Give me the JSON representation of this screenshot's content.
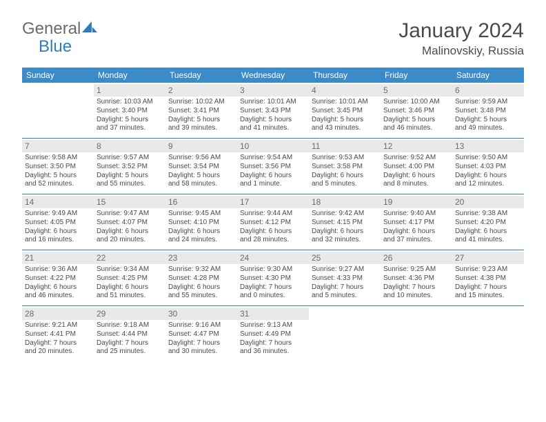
{
  "brand": {
    "general": "General",
    "blue": "Blue"
  },
  "title": "January 2024",
  "location": "Malinovskiy, Russia",
  "colors": {
    "header_bg": "#3b8bc9",
    "header_text": "#ffffff",
    "daynum_bg": "#e9e9e9",
    "border": "#2d7cc0",
    "text": "#4a4a4a",
    "logo_accent": "#2d7cc0"
  },
  "dayHeaders": [
    "Sunday",
    "Monday",
    "Tuesday",
    "Wednesday",
    "Thursday",
    "Friday",
    "Saturday"
  ],
  "weeks": [
    [
      {
        "empty": true
      },
      {
        "n": "1",
        "sr": "Sunrise: 10:03 AM",
        "ss": "Sunset: 3:40 PM",
        "d1": "Daylight: 5 hours",
        "d2": "and 37 minutes."
      },
      {
        "n": "2",
        "sr": "Sunrise: 10:02 AM",
        "ss": "Sunset: 3:41 PM",
        "d1": "Daylight: 5 hours",
        "d2": "and 39 minutes."
      },
      {
        "n": "3",
        "sr": "Sunrise: 10:01 AM",
        "ss": "Sunset: 3:43 PM",
        "d1": "Daylight: 5 hours",
        "d2": "and 41 minutes."
      },
      {
        "n": "4",
        "sr": "Sunrise: 10:01 AM",
        "ss": "Sunset: 3:45 PM",
        "d1": "Daylight: 5 hours",
        "d2": "and 43 minutes."
      },
      {
        "n": "5",
        "sr": "Sunrise: 10:00 AM",
        "ss": "Sunset: 3:46 PM",
        "d1": "Daylight: 5 hours",
        "d2": "and 46 minutes."
      },
      {
        "n": "6",
        "sr": "Sunrise: 9:59 AM",
        "ss": "Sunset: 3:48 PM",
        "d1": "Daylight: 5 hours",
        "d2": "and 49 minutes."
      }
    ],
    [
      {
        "n": "7",
        "sr": "Sunrise: 9:58 AM",
        "ss": "Sunset: 3:50 PM",
        "d1": "Daylight: 5 hours",
        "d2": "and 52 minutes."
      },
      {
        "n": "8",
        "sr": "Sunrise: 9:57 AM",
        "ss": "Sunset: 3:52 PM",
        "d1": "Daylight: 5 hours",
        "d2": "and 55 minutes."
      },
      {
        "n": "9",
        "sr": "Sunrise: 9:56 AM",
        "ss": "Sunset: 3:54 PM",
        "d1": "Daylight: 5 hours",
        "d2": "and 58 minutes."
      },
      {
        "n": "10",
        "sr": "Sunrise: 9:54 AM",
        "ss": "Sunset: 3:56 PM",
        "d1": "Daylight: 6 hours",
        "d2": "and 1 minute."
      },
      {
        "n": "11",
        "sr": "Sunrise: 9:53 AM",
        "ss": "Sunset: 3:58 PM",
        "d1": "Daylight: 6 hours",
        "d2": "and 5 minutes."
      },
      {
        "n": "12",
        "sr": "Sunrise: 9:52 AM",
        "ss": "Sunset: 4:00 PM",
        "d1": "Daylight: 6 hours",
        "d2": "and 8 minutes."
      },
      {
        "n": "13",
        "sr": "Sunrise: 9:50 AM",
        "ss": "Sunset: 4:03 PM",
        "d1": "Daylight: 6 hours",
        "d2": "and 12 minutes."
      }
    ],
    [
      {
        "n": "14",
        "sr": "Sunrise: 9:49 AM",
        "ss": "Sunset: 4:05 PM",
        "d1": "Daylight: 6 hours",
        "d2": "and 16 minutes."
      },
      {
        "n": "15",
        "sr": "Sunrise: 9:47 AM",
        "ss": "Sunset: 4:07 PM",
        "d1": "Daylight: 6 hours",
        "d2": "and 20 minutes."
      },
      {
        "n": "16",
        "sr": "Sunrise: 9:45 AM",
        "ss": "Sunset: 4:10 PM",
        "d1": "Daylight: 6 hours",
        "d2": "and 24 minutes."
      },
      {
        "n": "17",
        "sr": "Sunrise: 9:44 AM",
        "ss": "Sunset: 4:12 PM",
        "d1": "Daylight: 6 hours",
        "d2": "and 28 minutes."
      },
      {
        "n": "18",
        "sr": "Sunrise: 9:42 AM",
        "ss": "Sunset: 4:15 PM",
        "d1": "Daylight: 6 hours",
        "d2": "and 32 minutes."
      },
      {
        "n": "19",
        "sr": "Sunrise: 9:40 AM",
        "ss": "Sunset: 4:17 PM",
        "d1": "Daylight: 6 hours",
        "d2": "and 37 minutes."
      },
      {
        "n": "20",
        "sr": "Sunrise: 9:38 AM",
        "ss": "Sunset: 4:20 PM",
        "d1": "Daylight: 6 hours",
        "d2": "and 41 minutes."
      }
    ],
    [
      {
        "n": "21",
        "sr": "Sunrise: 9:36 AM",
        "ss": "Sunset: 4:22 PM",
        "d1": "Daylight: 6 hours",
        "d2": "and 46 minutes."
      },
      {
        "n": "22",
        "sr": "Sunrise: 9:34 AM",
        "ss": "Sunset: 4:25 PM",
        "d1": "Daylight: 6 hours",
        "d2": "and 51 minutes."
      },
      {
        "n": "23",
        "sr": "Sunrise: 9:32 AM",
        "ss": "Sunset: 4:28 PM",
        "d1": "Daylight: 6 hours",
        "d2": "and 55 minutes."
      },
      {
        "n": "24",
        "sr": "Sunrise: 9:30 AM",
        "ss": "Sunset: 4:30 PM",
        "d1": "Daylight: 7 hours",
        "d2": "and 0 minutes."
      },
      {
        "n": "25",
        "sr": "Sunrise: 9:27 AM",
        "ss": "Sunset: 4:33 PM",
        "d1": "Daylight: 7 hours",
        "d2": "and 5 minutes."
      },
      {
        "n": "26",
        "sr": "Sunrise: 9:25 AM",
        "ss": "Sunset: 4:36 PM",
        "d1": "Daylight: 7 hours",
        "d2": "and 10 minutes."
      },
      {
        "n": "27",
        "sr": "Sunrise: 9:23 AM",
        "ss": "Sunset: 4:38 PM",
        "d1": "Daylight: 7 hours",
        "d2": "and 15 minutes."
      }
    ],
    [
      {
        "n": "28",
        "sr": "Sunrise: 9:21 AM",
        "ss": "Sunset: 4:41 PM",
        "d1": "Daylight: 7 hours",
        "d2": "and 20 minutes."
      },
      {
        "n": "29",
        "sr": "Sunrise: 9:18 AM",
        "ss": "Sunset: 4:44 PM",
        "d1": "Daylight: 7 hours",
        "d2": "and 25 minutes."
      },
      {
        "n": "30",
        "sr": "Sunrise: 9:16 AM",
        "ss": "Sunset: 4:47 PM",
        "d1": "Daylight: 7 hours",
        "d2": "and 30 minutes."
      },
      {
        "n": "31",
        "sr": "Sunrise: 9:13 AM",
        "ss": "Sunset: 4:49 PM",
        "d1": "Daylight: 7 hours",
        "d2": "and 36 minutes."
      },
      {
        "empty": true
      },
      {
        "empty": true
      },
      {
        "empty": true
      }
    ]
  ]
}
